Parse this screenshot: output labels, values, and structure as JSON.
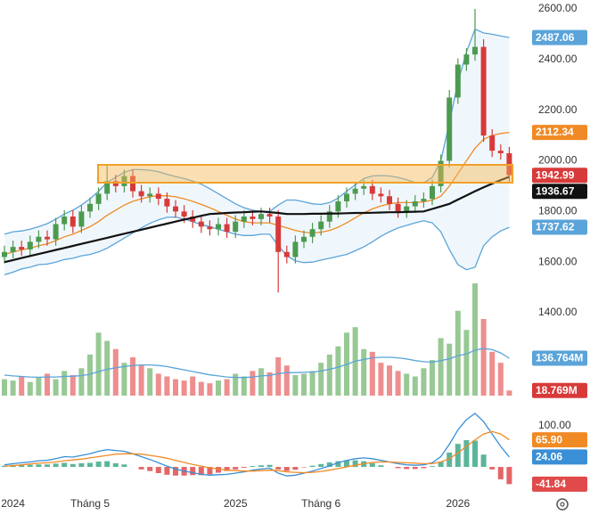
{
  "chart_data": {
    "type": "candlestick",
    "categories": [
      null,
      "2024",
      null,
      null,
      null,
      null,
      null,
      null,
      null,
      null,
      "Tháng 5",
      null,
      null,
      null,
      null,
      null,
      null,
      null,
      null,
      null,
      null,
      null,
      null,
      null,
      null,
      null,
      null,
      "2025",
      null,
      null,
      null,
      null,
      null,
      null,
      null,
      null,
      null,
      "Tháng 6",
      null,
      null,
      null,
      null,
      null,
      null,
      null,
      null,
      null,
      null,
      null,
      null,
      null,
      null,
      null,
      "2026",
      null,
      null,
      null,
      null,
      null,
      null
    ],
    "open": [
      1620,
      1640,
      1660,
      1650,
      1680,
      1700,
      1690,
      1750,
      1780,
      1740,
      1800,
      1830,
      1870,
      1920,
      1900,
      1940,
      1880,
      1860,
      1870,
      1850,
      1820,
      1800,
      1780,
      1760,
      1740,
      1730,
      1750,
      1720,
      1760,
      1780,
      1770,
      1790,
      1780,
      1640,
      1620,
      1680,
      1700,
      1730,
      1760,
      1800,
      1840,
      1870,
      1890,
      1900,
      1870,
      1860,
      1830,
      1800,
      1820,
      1840,
      1850,
      1900,
      2000,
      2250,
      2380,
      2420,
      2450,
      2100,
      2040,
      2030
    ],
    "high": [
      1665,
      1685,
      1685,
      1705,
      1725,
      1725,
      1775,
      1805,
      1805,
      1825,
      1855,
      1895,
      1980,
      1945,
      1965,
      1965,
      1905,
      1895,
      1895,
      1875,
      1845,
      1825,
      1805,
      1785,
      1765,
      1775,
      1775,
      1785,
      1805,
      1805,
      1815,
      1815,
      1805,
      1665,
      1705,
      1725,
      1755,
      1785,
      1825,
      1865,
      1895,
      1915,
      1925,
      1925,
      1895,
      1885,
      1855,
      1845,
      1865,
      1875,
      1925,
      2025,
      2280,
      2405,
      2445,
      2600,
      2480,
      2125,
      2065,
      2055
    ],
    "low": [
      1595,
      1615,
      1625,
      1625,
      1655,
      1665,
      1665,
      1725,
      1715,
      1715,
      1775,
      1805,
      1845,
      1875,
      1875,
      1855,
      1835,
      1835,
      1825,
      1795,
      1775,
      1755,
      1735,
      1715,
      1705,
      1705,
      1695,
      1695,
      1735,
      1745,
      1745,
      1755,
      1480,
      1595,
      1595,
      1655,
      1675,
      1705,
      1735,
      1775,
      1815,
      1845,
      1865,
      1845,
      1835,
      1805,
      1775,
      1775,
      1795,
      1815,
      1825,
      1875,
      1975,
      2225,
      2355,
      2395,
      2075,
      2015,
      2005,
      1918
    ],
    "close": [
      1640,
      1660,
      1650,
      1680,
      1700,
      1690,
      1750,
      1780,
      1740,
      1800,
      1830,
      1870,
      1920,
      1900,
      1940,
      1880,
      1860,
      1870,
      1850,
      1820,
      1800,
      1780,
      1760,
      1740,
      1730,
      1750,
      1720,
      1760,
      1780,
      1770,
      1790,
      1780,
      1640,
      1620,
      1680,
      1700,
      1730,
      1760,
      1800,
      1840,
      1870,
      1890,
      1900,
      1870,
      1860,
      1830,
      1800,
      1820,
      1840,
      1850,
      1900,
      2000,
      2250,
      2380,
      2420,
      2450,
      2100,
      2040,
      2030,
      1942.99
    ],
    "ma": [
      1600,
      1608,
      1616,
      1624,
      1632,
      1640,
      1648,
      1656,
      1664,
      1672,
      1680,
      1688,
      1696,
      1704,
      1712,
      1720,
      1728,
      1736,
      1744,
      1752,
      1760,
      1768,
      1775,
      1783,
      1790,
      1792,
      1794,
      1796,
      1797,
      1799,
      1800,
      1797,
      1794,
      1790,
      1790,
      1790,
      1791,
      1791,
      1792,
      1792,
      1793,
      1794,
      1794,
      1795,
      1796,
      1797,
      1797,
      1798,
      1799,
      1800,
      1810,
      1820,
      1830,
      1847,
      1863,
      1880,
      1895,
      1910,
      1924,
      1936.67
    ],
    "bb_mid": [
      1630,
      1640,
      1648,
      1655,
      1665,
      1672,
      1685,
      1700,
      1710,
      1725,
      1740,
      1760,
      1785,
      1805,
      1825,
      1840,
      1850,
      1858,
      1862,
      1862,
      1858,
      1850,
      1840,
      1828,
      1815,
      1800,
      1785,
      1770,
      1760,
      1755,
      1755,
      1755,
      1745,
      1735,
      1725,
      1718,
      1715,
      1718,
      1725,
      1738,
      1755,
      1775,
      1795,
      1810,
      1822,
      1830,
      1835,
      1835,
      1835,
      1838,
      1845,
      1860,
      1900,
      1950,
      2000,
      2050,
      2085,
      2100,
      2108,
      2112.34
    ],
    "bb_upper": [
      1710,
      1720,
      1723,
      1730,
      1740,
      1752,
      1770,
      1790,
      1805,
      1825,
      1850,
      1880,
      1915,
      1935,
      1955,
      1965,
      1965,
      1963,
      1957,
      1947,
      1938,
      1930,
      1920,
      1908,
      1890,
      1870,
      1850,
      1830,
      1815,
      1805,
      1800,
      1800,
      1825,
      1845,
      1845,
      1838,
      1830,
      1828,
      1835,
      1853,
      1880,
      1905,
      1930,
      1940,
      1942,
      1940,
      1935,
      1925,
      1915,
      1913,
      1935,
      2000,
      2150,
      2310,
      2430,
      2520,
      2505,
      2500,
      2493,
      2487.06
    ],
    "bb_lower": [
      1550,
      1560,
      1573,
      1580,
      1590,
      1592,
      1600,
      1610,
      1615,
      1625,
      1630,
      1640,
      1655,
      1675,
      1695,
      1715,
      1735,
      1753,
      1767,
      1777,
      1778,
      1770,
      1760,
      1748,
      1740,
      1730,
      1720,
      1710,
      1705,
      1705,
      1710,
      1710,
      1665,
      1625,
      1605,
      1598,
      1600,
      1608,
      1615,
      1623,
      1630,
      1645,
      1660,
      1680,
      1702,
      1720,
      1735,
      1745,
      1755,
      1763,
      1755,
      1720,
      1650,
      1590,
      1570,
      1580,
      1665,
      1700,
      1723,
      1737.62
    ],
    "volume": [
      60,
      55,
      70,
      50,
      65,
      80,
      60,
      90,
      75,
      100,
      150,
      230,
      200,
      170,
      120,
      140,
      110,
      100,
      80,
      70,
      60,
      55,
      70,
      50,
      45,
      55,
      60,
      80,
      70,
      90,
      100,
      85,
      140,
      110,
      75,
      80,
      90,
      120,
      150,
      180,
      230,
      250,
      170,
      160,
      120,
      110,
      90,
      80,
      70,
      100,
      130,
      210,
      190,
      310,
      240,
      410,
      280,
      160,
      120,
      18.769
    ],
    "volume_ma": [
      75,
      72,
      70,
      68,
      67,
      68,
      68,
      70,
      71,
      73,
      78,
      88,
      96,
      102,
      106,
      110,
      112,
      112,
      110,
      106,
      100,
      94,
      88,
      82,
      76,
      72,
      68,
      66,
      66,
      68,
      72,
      74,
      80,
      84,
      84,
      85,
      86,
      90,
      96,
      104,
      114,
      126,
      132,
      138,
      140,
      140,
      138,
      134,
      128,
      124,
      122,
      128,
      134,
      146,
      152,
      166,
      172,
      168,
      156,
      136.764
    ],
    "macd": [
      5,
      8,
      10,
      12,
      15,
      16,
      20,
      25,
      24,
      28,
      32,
      38,
      42,
      40,
      38,
      32,
      25,
      18,
      10,
      2,
      -5,
      -10,
      -14,
      -18,
      -20,
      -19,
      -18,
      -15,
      -12,
      -8,
      -5,
      -3,
      -15,
      -22,
      -20,
      -15,
      -10,
      -4,
      3,
      10,
      16,
      20,
      22,
      20,
      16,
      12,
      8,
      5,
      4,
      5,
      10,
      25,
      55,
      90,
      115,
      130,
      110,
      80,
      50,
      24.06
    ],
    "signal": [
      2,
      3,
      5,
      7,
      9,
      10,
      12,
      15,
      17,
      19,
      22,
      25,
      28,
      31,
      32,
      32,
      31,
      28,
      25,
      21,
      16,
      11,
      6,
      2,
      -2,
      -5,
      -8,
      -9,
      -10,
      -10,
      -9,
      -8,
      -9,
      -12,
      -13,
      -14,
      -13,
      -11,
      -8,
      -4,
      0,
      4,
      8,
      11,
      12,
      12,
      11,
      10,
      9,
      8,
      8,
      12,
      20,
      34,
      50,
      66,
      80,
      86,
      80,
      65.9
    ],
    "hist": [
      3,
      5,
      5,
      5,
      6,
      6,
      8,
      10,
      7,
      9,
      10,
      13,
      14,
      9,
      6,
      0,
      -6,
      -10,
      -15,
      -19,
      -21,
      -21,
      -20,
      -20,
      -18,
      -14,
      -10,
      -6,
      -2,
      2,
      4,
      5,
      -6,
      -10,
      -7,
      -1,
      3,
      7,
      11,
      14,
      16,
      16,
      14,
      9,
      4,
      0,
      -3,
      -5,
      -5,
      -3,
      2,
      13,
      35,
      56,
      65,
      64,
      30,
      -6,
      -30,
      -41.84
    ],
    "last_labels": {
      "volume_ma": "136.764M",
      "volume": "18.769M",
      "signal": "65.90"
    },
    "ylim": [
      1400,
      2600
    ],
    "yticks": [
      {
        "value": 1400,
        "label": "1400.00"
      },
      {
        "value": 1600,
        "label": "1600.00"
      },
      {
        "value": 1800,
        "label": "1800.00"
      },
      {
        "value": 2000,
        "label": "2000.00"
      },
      {
        "value": 2200,
        "label": "2200.00"
      },
      {
        "value": 2400,
        "label": "2400.00"
      },
      {
        "value": 2600,
        "label": "2600.00"
      }
    ],
    "volume_lim": [
      0,
      420
    ],
    "macd_lim": [
      -80,
      130
    ],
    "macd_ticks": [
      {
        "value": 100,
        "label": "100.00"
      }
    ],
    "grid": false,
    "colors": {
      "up": "#4c9a50",
      "down": "#d83a3a",
      "volume_up": "#98c995",
      "volume_down": "#ee8e8e",
      "band": "#5ba4d9",
      "mid": "#f08a24",
      "ma": "#111111",
      "macd": "#3a8fd6",
      "signal": "#f08a24",
      "hist_up": "#3fa88a",
      "hist_down": "#e04a4a"
    }
  }
}
